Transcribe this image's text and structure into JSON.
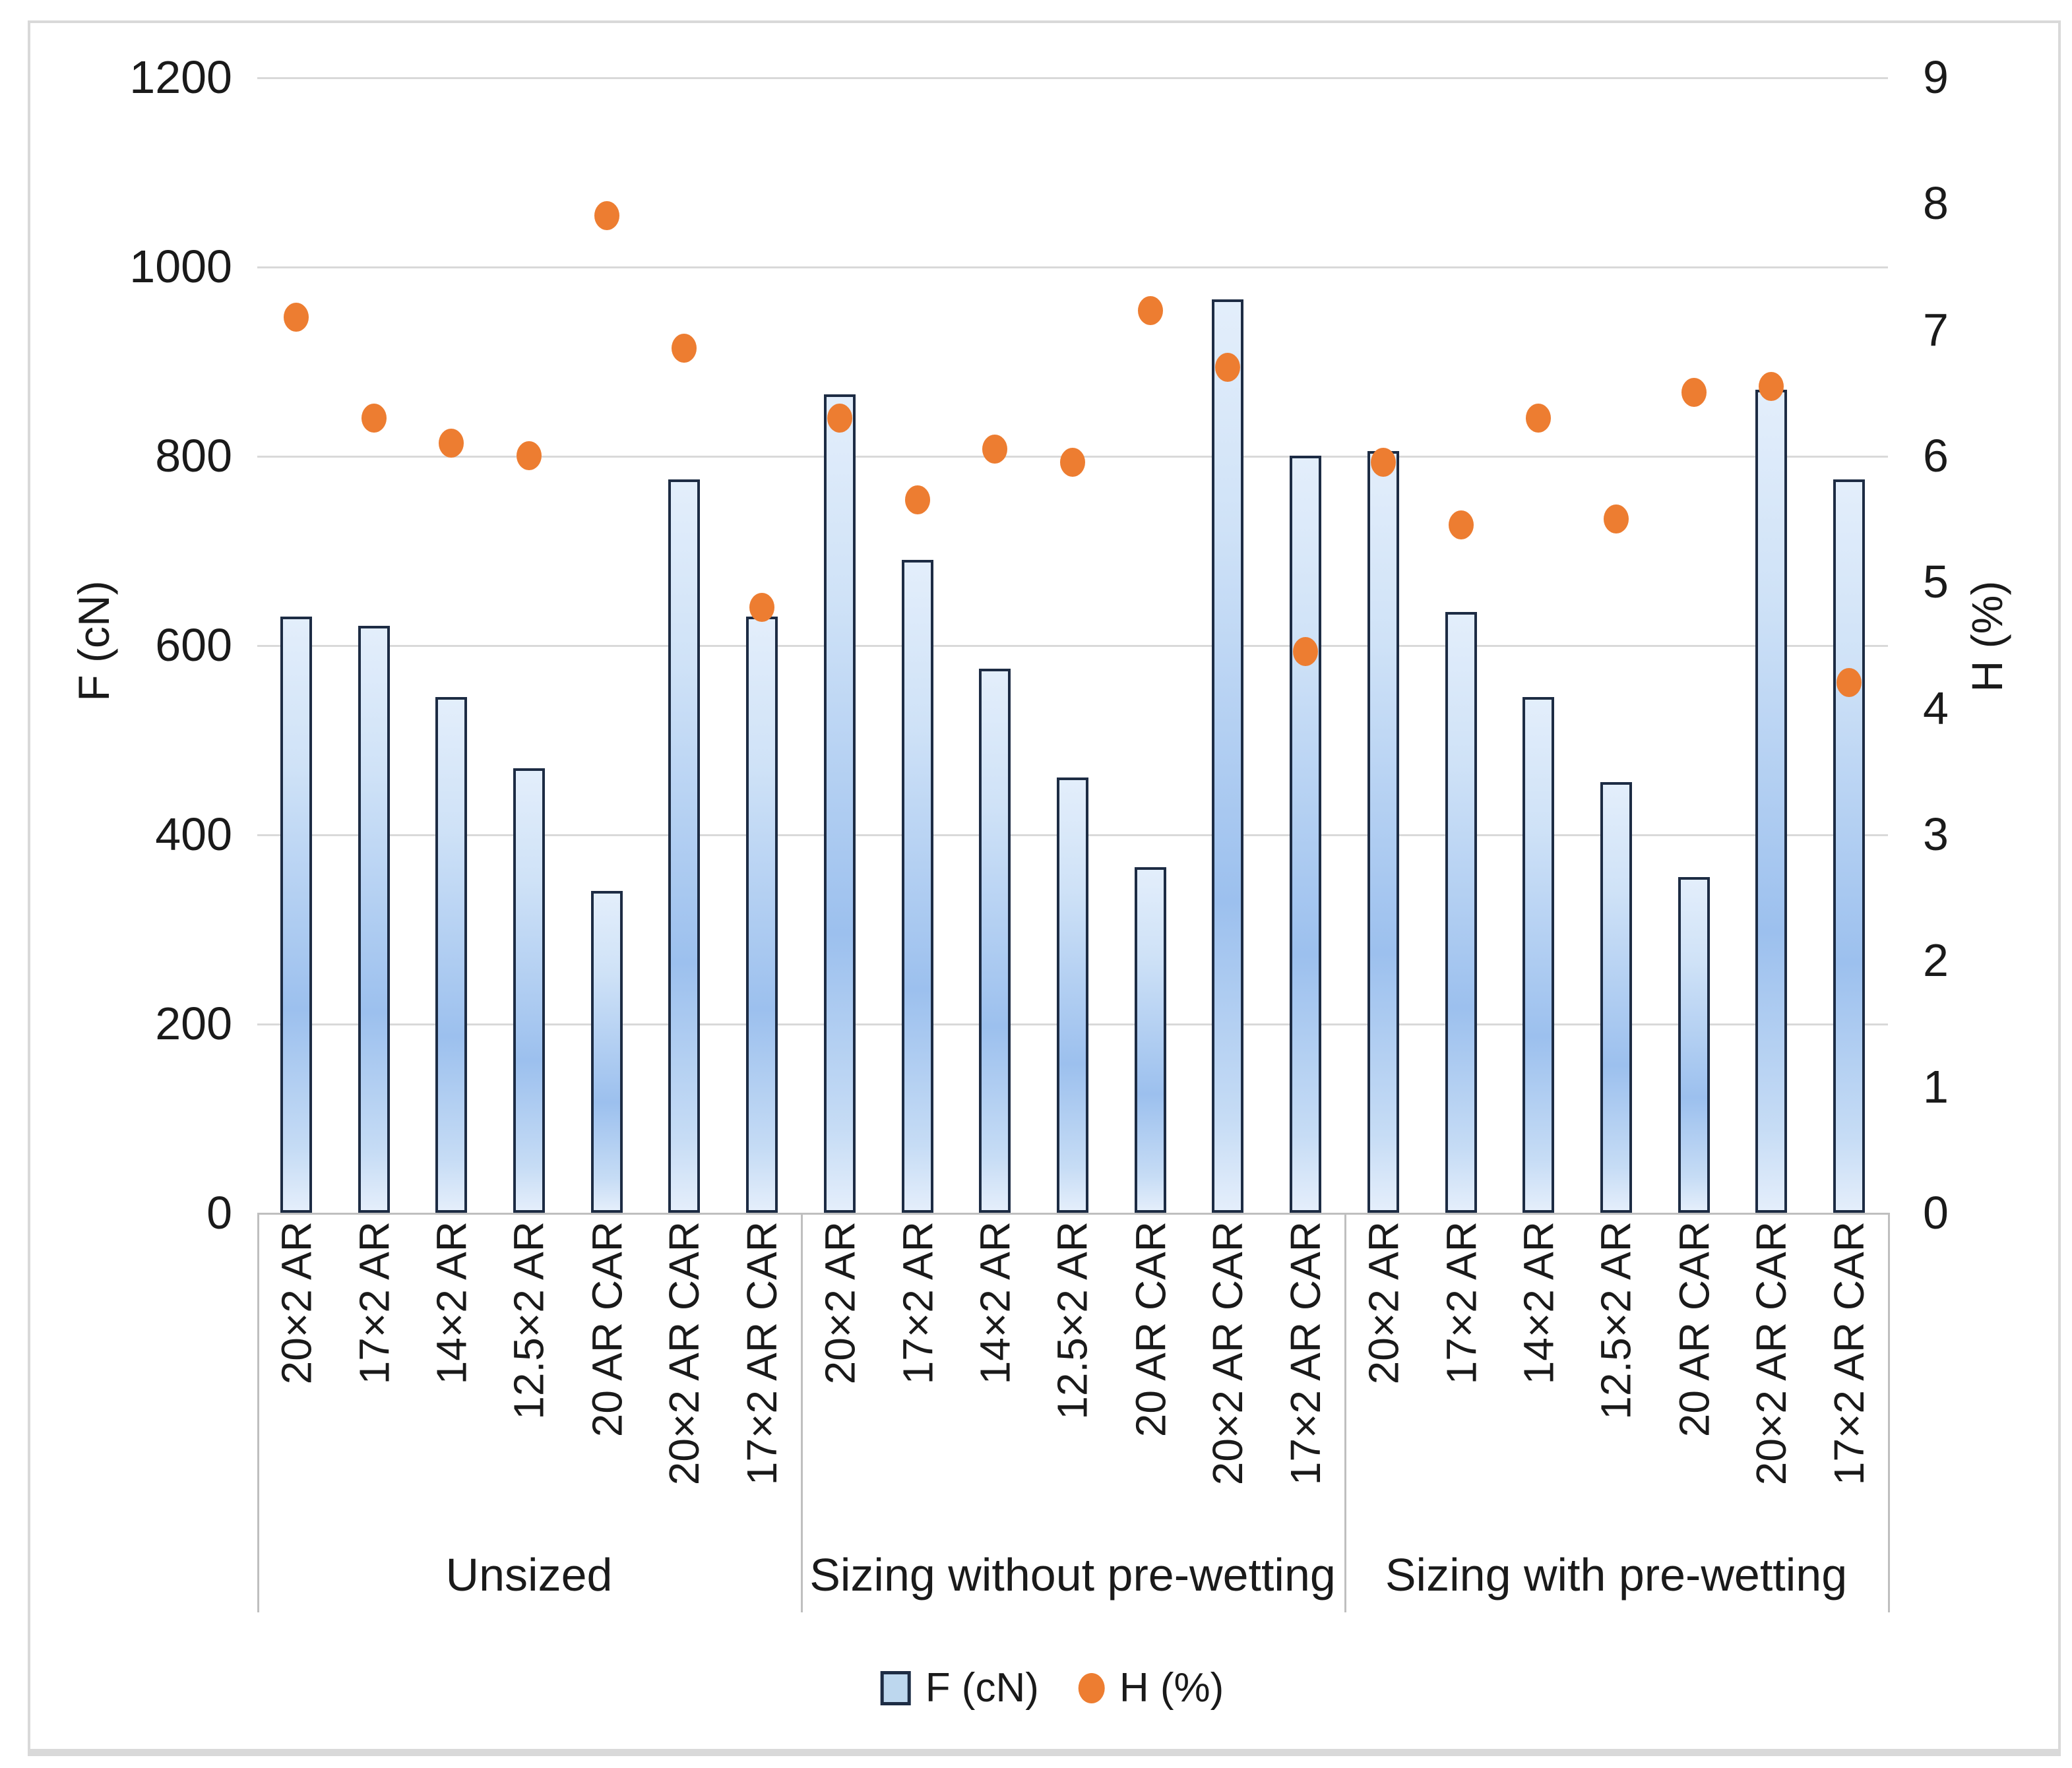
{
  "chart_data": {
    "type": "bar+scatter (dual axis combo)",
    "groups": [
      "Unsized",
      "Sizing without pre-wetting",
      "Sizing with pre-wetting"
    ],
    "categories_per_group": [
      "20×2 AR",
      "17×2 AR",
      "14×2 AR",
      "12.5×2 AR",
      "20 AR CAR",
      "20×2 AR CAR",
      "17×2 AR CAR"
    ],
    "series": [
      {
        "name": "F (cN)",
        "type": "bar",
        "axis": "left",
        "values": [
          [
            630,
            620,
            545,
            470,
            340,
            775,
            630
          ],
          [
            865,
            690,
            575,
            460,
            365,
            965,
            800
          ],
          [
            805,
            635,
            545,
            455,
            355,
            870,
            775
          ]
        ]
      },
      {
        "name": "H (%)",
        "type": "scatter",
        "axis": "right",
        "values": [
          [
            7.1,
            6.3,
            6.1,
            6.0,
            7.9,
            6.85,
            4.8
          ],
          [
            6.3,
            5.65,
            6.05,
            5.95,
            7.15,
            6.7,
            4.45
          ],
          [
            5.95,
            5.45,
            6.3,
            5.5,
            6.5,
            6.55,
            4.2
          ]
        ]
      }
    ],
    "left_axis": {
      "title": "F (cN)",
      "min": 0,
      "max": 1200,
      "ticks": [
        0,
        200,
        400,
        600,
        800,
        1000,
        1200
      ]
    },
    "right_axis": {
      "title": "H (%)",
      "min": 0,
      "max": 9,
      "ticks": [
        0,
        1,
        2,
        3,
        4,
        5,
        6,
        7,
        8,
        9
      ]
    },
    "legend": [
      {
        "label": "F (cN)",
        "marker": "bar-square"
      },
      {
        "label": "H (%)",
        "marker": "dot"
      }
    ],
    "grid": "horizontal gridlines only",
    "colors": {
      "bar_fill_light": "#e3eefb",
      "bar_fill_dark": "#9cc0ee",
      "bar_border": "#1d2c44",
      "marker": "#ED7D31",
      "gridline": "#d9d9d9",
      "axis_line": "#bfbfbf",
      "text": "#1a1a1a",
      "frame": "#d9d9d9"
    }
  }
}
